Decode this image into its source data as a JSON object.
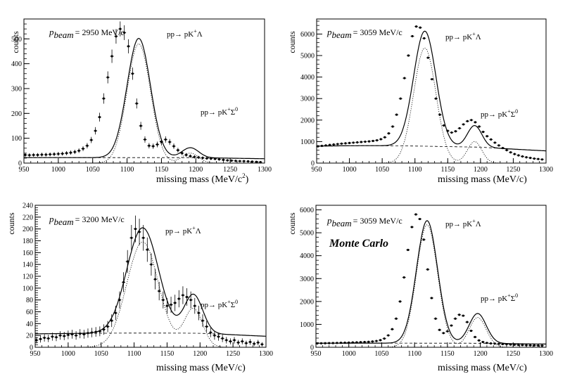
{
  "chart_data": [
    {
      "type": "scatter",
      "title": "",
      "xlabel": "missing mass  (MeV/c",
      "xlabel_sup": "2",
      "xlabel_tail": ")",
      "ylabel": "counts",
      "xlim": [
        950,
        1300
      ],
      "ylim": [
        0,
        580
      ],
      "x_ticks": [
        950,
        1000,
        1050,
        1100,
        1150,
        1200,
        1250,
        1300
      ],
      "y_ticks": [
        0,
        100,
        200,
        300,
        400,
        500
      ],
      "annotations": {
        "pbeam_label": "p",
        "pbeam_sub": "beam",
        "pbeam_value": "= 2950 MeV/c",
        "lambda_reaction": "pp→ pK",
        "lambda_reaction_sup": "+",
        "lambda_reaction_tail": "Λ",
        "sigma_reaction": "pp→ pK",
        "sigma_reaction_sup": "+",
        "sigma_reaction_tail": "Σ",
        "sigma_reaction_sup2": "0"
      },
      "model": {
        "bg": [
          22,
          33,
          42,
          20
        ],
        "lambda": [
          480,
          1117,
          17
        ],
        "sigma": [
          40,
          1192,
          12
        ]
      },
      "jitter": 0.06,
      "err_scale": 1.3,
      "points_x": [
        952,
        958,
        964,
        970,
        976,
        982,
        988,
        994,
        1000,
        1006,
        1012,
        1018,
        1024,
        1030,
        1036,
        1042,
        1048,
        1054,
        1060,
        1066,
        1072,
        1078,
        1084,
        1090,
        1096,
        1102,
        1108,
        1114,
        1120,
        1126,
        1132,
        1138,
        1144,
        1150,
        1156,
        1162,
        1168,
        1174,
        1180,
        1186,
        1192,
        1198,
        1204,
        1210,
        1216,
        1222,
        1228,
        1234,
        1240,
        1246,
        1252,
        1258,
        1264,
        1270,
        1276,
        1282,
        1288,
        1294
      ],
      "points_y": [
        33,
        32,
        33,
        33,
        34,
        34,
        35,
        36,
        37,
        38,
        40,
        42,
        45,
        50,
        58,
        70,
        93,
        130,
        185,
        260,
        345,
        430,
        510,
        540,
        525,
        470,
        360,
        240,
        150,
        95,
        70,
        68,
        75,
        86,
        95,
        85,
        68,
        52,
        40,
        33,
        28,
        25,
        23,
        21,
        19,
        18,
        17,
        15,
        13,
        11,
        10,
        9,
        8,
        8,
        7,
        6,
        5,
        4
      ]
    },
    {
      "type": "scatter",
      "title": "",
      "xlabel": "missing mass  (MeV/c)",
      "ylabel": "counts",
      "xlim": [
        950,
        1300
      ],
      "ylim": [
        0,
        6700
      ],
      "x_ticks": [
        950,
        1000,
        1050,
        1100,
        1150,
        1200,
        1250,
        1300
      ],
      "y_ticks": [
        0,
        1000,
        2000,
        3000,
        4000,
        5000,
        6000
      ],
      "annotations": {
        "pbeam_label": "p",
        "pbeam_sub": "beam",
        "pbeam_value": "= 3059 MeV/c",
        "lambda_reaction": "pp→ pK",
        "lambda_reaction_sup": "+",
        "lambda_reaction_tail": "Λ",
        "sigma_reaction": "pp→ pK",
        "sigma_reaction_sup": "+",
        "sigma_reaction_tail": "Σ",
        "sigma_reaction_sup2": "0"
      },
      "model": {
        "bg": [
          700,
          1030,
          40,
          110
        ],
        "lambda": [
          5350,
          1115,
          17
        ],
        "sigma": [
          1000,
          1191,
          11
        ]
      },
      "jitter": 0.015,
      "err_scale": 0.35,
      "points_x": [
        952,
        958,
        964,
        970,
        976,
        982,
        988,
        994,
        1000,
        1006,
        1012,
        1018,
        1024,
        1030,
        1036,
        1042,
        1048,
        1054,
        1060,
        1066,
        1072,
        1078,
        1084,
        1090,
        1096,
        1102,
        1108,
        1114,
        1120,
        1126,
        1132,
        1138,
        1144,
        1150,
        1156,
        1162,
        1168,
        1174,
        1180,
        1186,
        1192,
        1198,
        1204,
        1210,
        1216,
        1222,
        1228,
        1234,
        1240,
        1246,
        1252,
        1258,
        1264,
        1270,
        1276,
        1282,
        1288,
        1294
      ],
      "points_y": [
        780,
        800,
        820,
        845,
        865,
        885,
        905,
        920,
        935,
        950,
        965,
        980,
        995,
        1010,
        1030,
        1060,
        1110,
        1200,
        1380,
        1700,
        2250,
        3000,
        3950,
        5000,
        5900,
        6350,
        6300,
        5800,
        4900,
        3900,
        3000,
        2250,
        1750,
        1500,
        1420,
        1480,
        1620,
        1800,
        1950,
        2000,
        1900,
        1700,
        1450,
        1250,
        1100,
        950,
        820,
        700,
        600,
        500,
        420,
        360,
        310,
        270,
        240,
        210,
        190,
        170
      ]
    },
    {
      "type": "scatter",
      "title": "",
      "xlabel": "missing mass  (MeV/c)",
      "ylabel": "counts",
      "xlim": [
        950,
        1300
      ],
      "ylim": [
        0,
        240
      ],
      "x_ticks": [
        950,
        1000,
        1050,
        1100,
        1150,
        1200,
        1250,
        1300
      ],
      "y_ticks": [
        0,
        20,
        40,
        60,
        80,
        100,
        120,
        140,
        160,
        180,
        200,
        220,
        240
      ],
      "annotations": {
        "pbeam_label": "p",
        "pbeam_sub": "beam",
        "pbeam_value": "= 3200 MeV/c",
        "lambda_reaction": "pp→ pK",
        "lambda_reaction_sup": "+",
        "lambda_reaction_tail": "Λ",
        "sigma_reaction": "pp→ pK",
        "sigma_reaction_sup": "+",
        "sigma_reaction_tail": "Σ",
        "sigma_reaction_sup2": "0"
      },
      "model": {
        "bg": [
          20,
          1120,
          65,
          4
        ],
        "lambda": [
          178,
          1113,
          24
        ],
        "sigma": [
          65,
          1190,
          14
        ]
      },
      "jitter": 0.08,
      "err_scale": 1.6,
      "points_x": [
        952,
        958,
        964,
        970,
        976,
        982,
        988,
        994,
        1000,
        1006,
        1012,
        1018,
        1024,
        1030,
        1036,
        1042,
        1048,
        1054,
        1060,
        1066,
        1072,
        1078,
        1084,
        1090,
        1096,
        1102,
        1108,
        1114,
        1120,
        1126,
        1132,
        1138,
        1144,
        1150,
        1156,
        1162,
        1168,
        1174,
        1180,
        1186,
        1192,
        1198,
        1204,
        1210,
        1216,
        1222,
        1228,
        1234,
        1240,
        1246,
        1252,
        1258,
        1264,
        1270,
        1276,
        1282,
        1288,
        1294
      ],
      "points_y": [
        12,
        14,
        16,
        15,
        18,
        17,
        20,
        19,
        21,
        22,
        20,
        23,
        22,
        24,
        25,
        26,
        27,
        30,
        35,
        45,
        58,
        80,
        110,
        145,
        185,
        200,
        195,
        185,
        165,
        140,
        115,
        95,
        80,
        70,
        72,
        75,
        82,
        88,
        85,
        80,
        70,
        58,
        45,
        35,
        25,
        20,
        18,
        15,
        12,
        10,
        12,
        8,
        10,
        7,
        9,
        6,
        8,
        5
      ]
    },
    {
      "type": "line",
      "title": "",
      "xlabel": "missing mass  (MeV/c)",
      "ylabel": "counts",
      "xlim": [
        950,
        1300
      ],
      "ylim": [
        0,
        6200
      ],
      "x_ticks": [
        950,
        1000,
        1050,
        1100,
        1150,
        1200,
        1250,
        1300
      ],
      "y_ticks": [
        0,
        1000,
        2000,
        3000,
        4000,
        5000,
        6000
      ],
      "annotations": {
        "pbeam_label": "p",
        "pbeam_sub": "beam",
        "pbeam_value": "= 3059 MeV/c",
        "lambda_reaction": "pp→ pK",
        "lambda_reaction_sup": "+",
        "lambda_reaction_tail": "Λ",
        "sigma_reaction": "pp→ pK",
        "sigma_reaction_sup": "+",
        "sigma_reaction_tail": "Σ",
        "sigma_reaction_sup2": "0",
        "monte_carlo": "Monte Carlo"
      },
      "model": {
        "bg": [
          150,
          1050,
          90,
          30
        ],
        "lambda": [
          5350,
          1119,
          16
        ],
        "sigma": [
          1300,
          1196,
          13
        ]
      },
      "jitter": 0.01,
      "err_scale": 0.2,
      "points_x": [
        952,
        958,
        964,
        970,
        976,
        982,
        988,
        994,
        1000,
        1006,
        1012,
        1018,
        1024,
        1030,
        1036,
        1042,
        1048,
        1054,
        1060,
        1066,
        1072,
        1078,
        1084,
        1090,
        1096,
        1102,
        1108,
        1114,
        1120,
        1126,
        1132,
        1138,
        1144,
        1150,
        1156,
        1162,
        1168,
        1174,
        1180,
        1186,
        1192,
        1198,
        1204,
        1210,
        1216,
        1222,
        1228,
        1234,
        1240,
        1246,
        1252,
        1258,
        1264,
        1270,
        1276,
        1282,
        1288,
        1294
      ],
      "points_y": [
        170,
        175,
        178,
        182,
        185,
        190,
        195,
        200,
        205,
        210,
        215,
        222,
        230,
        240,
        255,
        275,
        310,
        380,
        520,
        790,
        1250,
        2000,
        3050,
        4250,
        5250,
        5800,
        5600,
        4700,
        3400,
        2150,
        1250,
        760,
        620,
        700,
        950,
        1250,
        1420,
        1380,
        1100,
        720,
        450,
        300,
        230,
        190,
        170,
        160,
        150,
        140,
        130,
        120,
        110,
        100,
        95,
        90,
        85,
        80,
        75,
        70
      ]
    }
  ]
}
